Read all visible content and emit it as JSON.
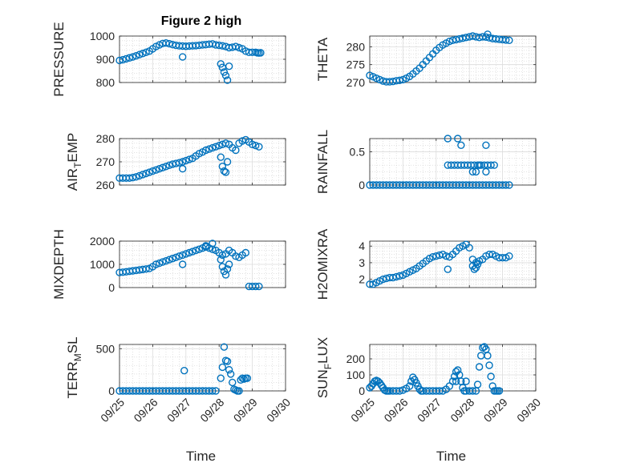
{
  "figure": {
    "title": "Figure 2 high",
    "marker_color": "#0072BD"
  },
  "chart_data": [
    {
      "type": "scatter",
      "ylabel": "PRESSURE",
      "ylabel_sub": "",
      "ylabel_tail": "",
      "xlabel": "",
      "xlim": [
        0,
        5
      ],
      "ylim": [
        800,
        1000
      ],
      "yticks": [
        800,
        900,
        1000
      ],
      "ytick_labels": [
        "800",
        "900",
        "1000"
      ],
      "xtick_labels": [
        "09/25",
        "09/26",
        "09/27",
        "09/28",
        "09/29",
        "09/30"
      ],
      "show_xtick_labels": false,
      "grid": true,
      "minor_grid": true,
      "x": [
        0.0,
        0.1,
        0.2,
        0.3,
        0.4,
        0.5,
        0.6,
        0.7,
        0.8,
        0.9,
        1.0,
        1.1,
        1.2,
        1.3,
        1.4,
        1.5,
        1.6,
        1.7,
        1.8,
        1.9,
        2.0,
        2.1,
        2.2,
        2.3,
        2.4,
        2.5,
        2.6,
        2.7,
        2.8,
        2.9,
        3.0,
        3.1,
        3.2,
        3.3,
        3.4,
        3.5,
        3.6,
        3.7,
        3.8,
        3.9,
        4.0,
        4.1,
        4.15,
        4.2,
        4.25,
        1.9,
        3.05,
        3.1,
        3.15,
        3.2,
        3.25,
        3.3
      ],
      "y": [
        895,
        898,
        902,
        906,
        910,
        915,
        920,
        925,
        930,
        935,
        945,
        955,
        962,
        968,
        970,
        967,
        963,
        960,
        958,
        957,
        956,
        957,
        958,
        959,
        960,
        962,
        963,
        965,
        966,
        962,
        960,
        958,
        955,
        950,
        952,
        955,
        950,
        945,
        935,
        930,
        930,
        930,
        928,
        927,
        928,
        910,
        880,
        865,
        845,
        830,
        810,
        870
      ]
    },
    {
      "type": "scatter",
      "ylabel": "THETA",
      "ylabel_sub": "",
      "ylabel_tail": "",
      "xlabel": "",
      "xlim": [
        0,
        5
      ],
      "ylim": [
        270,
        283
      ],
      "yticks": [
        270,
        275,
        280
      ],
      "ytick_labels": [
        "270",
        "275",
        "280"
      ],
      "xtick_labels": [
        "09/25",
        "09/26",
        "09/27",
        "09/28",
        "09/29",
        "09/30"
      ],
      "show_xtick_labels": false,
      "grid": true,
      "minor_grid": true,
      "x": [
        0.0,
        0.1,
        0.2,
        0.3,
        0.4,
        0.5,
        0.6,
        0.7,
        0.8,
        0.9,
        1.0,
        1.1,
        1.2,
        1.3,
        1.4,
        1.5,
        1.6,
        1.7,
        1.8,
        1.9,
        2.0,
        2.1,
        2.2,
        2.3,
        2.4,
        2.5,
        2.6,
        2.7,
        2.8,
        2.9,
        3.0,
        3.1,
        3.2,
        3.3,
        3.4,
        3.5,
        3.6,
        3.7,
        3.8,
        3.9,
        4.0,
        4.1,
        4.2,
        3.55
      ],
      "y": [
        272,
        271.6,
        271.2,
        270.8,
        270.4,
        270.2,
        270.2,
        270.3,
        270.5,
        270.6,
        270.8,
        271.2,
        271.7,
        272.4,
        273.2,
        274,
        275,
        276,
        277,
        278,
        279,
        279.8,
        280.5,
        281,
        281.5,
        281.8,
        282,
        282.2,
        282.4,
        282.6,
        282.8,
        283,
        282.8,
        282.6,
        282.8,
        282.7,
        282.5,
        282.3,
        282.2,
        282.1,
        282.0,
        281.9,
        281.8,
        283.5
      ]
    },
    {
      "type": "scatter",
      "ylabel": "AIR",
      "ylabel_sub": "T",
      "ylabel_tail": "EMP",
      "xlabel": "",
      "xlim": [
        0,
        5
      ],
      "ylim": [
        260,
        280
      ],
      "yticks": [
        260,
        270,
        280
      ],
      "ytick_labels": [
        "260",
        "270",
        "280"
      ],
      "xtick_labels": [
        "09/25",
        "09/26",
        "09/27",
        "09/28",
        "09/29",
        "09/30"
      ],
      "show_xtick_labels": false,
      "grid": true,
      "minor_grid": true,
      "x": [
        0.0,
        0.1,
        0.2,
        0.3,
        0.4,
        0.5,
        0.6,
        0.7,
        0.8,
        0.9,
        1.0,
        1.1,
        1.2,
        1.3,
        1.4,
        1.5,
        1.6,
        1.7,
        1.8,
        1.9,
        2.0,
        2.1,
        2.2,
        2.3,
        2.4,
        2.5,
        2.6,
        2.7,
        2.8,
        2.9,
        3.0,
        3.1,
        3.2,
        3.3,
        3.4,
        3.5,
        3.6,
        3.7,
        3.8,
        3.9,
        4.0,
        4.1,
        4.2,
        1.9,
        3.05,
        3.1,
        3.15,
        3.2,
        3.25
      ],
      "y": [
        263,
        263,
        263,
        263,
        263.2,
        263.5,
        264,
        264.5,
        265,
        265.5,
        266,
        266.5,
        267,
        267.5,
        268,
        268.5,
        269,
        269.3,
        269.6,
        270,
        270.5,
        271,
        271.5,
        272.5,
        273.5,
        274.2,
        275,
        275.5,
        276,
        276.5,
        277,
        277.5,
        278,
        277.5,
        276,
        275,
        278,
        279,
        279.5,
        278.5,
        277.5,
        277,
        276.5,
        267,
        272,
        268,
        266,
        265.5,
        270
      ]
    },
    {
      "type": "scatter",
      "ylabel": "RAINFALL",
      "ylabel_sub": "",
      "ylabel_tail": "",
      "xlabel": "",
      "xlim": [
        0,
        5
      ],
      "ylim": [
        0,
        0.7
      ],
      "yticks": [
        0,
        0.5
      ],
      "ytick_labels": [
        "0",
        "0.5"
      ],
      "xtick_labels": [
        "09/25",
        "09/26",
        "09/27",
        "09/28",
        "09/29",
        "09/30"
      ],
      "show_xtick_labels": false,
      "grid": true,
      "minor_grid": true,
      "x": [
        0.0,
        0.1,
        0.2,
        0.3,
        0.4,
        0.5,
        0.6,
        0.7,
        0.8,
        0.9,
        1.0,
        1.1,
        1.2,
        1.3,
        1.4,
        1.5,
        1.6,
        1.7,
        1.8,
        1.9,
        2.0,
        2.1,
        2.2,
        2.3,
        2.4,
        2.5,
        2.6,
        2.7,
        2.8,
        2.9,
        3.0,
        3.1,
        3.2,
        3.3,
        3.4,
        3.5,
        3.6,
        3.7,
        3.8,
        3.9,
        4.0,
        4.1,
        4.2,
        2.35,
        2.45,
        2.55,
        2.65,
        2.75,
        2.85,
        2.95,
        3.05,
        3.15,
        3.25,
        3.35,
        3.45,
        3.55,
        3.65,
        3.75,
        2.35,
        2.65,
        2.75,
        3.1,
        3.5,
        3.2,
        3.3,
        3.5
      ],
      "y": [
        0,
        0,
        0,
        0,
        0,
        0,
        0,
        0,
        0,
        0,
        0,
        0,
        0,
        0,
        0,
        0,
        0,
        0,
        0,
        0,
        0,
        0,
        0,
        0,
        0,
        0,
        0,
        0,
        0,
        0,
        0,
        0,
        0,
        0,
        0,
        0,
        0,
        0,
        0,
        0,
        0,
        0,
        0,
        0.3,
        0.3,
        0.3,
        0.3,
        0.3,
        0.3,
        0.3,
        0.3,
        0.3,
        0.3,
        0.3,
        0.3,
        0.3,
        0.3,
        0.3,
        0.7,
        0.7,
        0.6,
        0.2,
        0.6,
        0.2,
        0.3,
        0.2
      ]
    },
    {
      "type": "scatter",
      "ylabel": "MIXDEPTH",
      "ylabel_sub": "",
      "ylabel_tail": "",
      "xlabel": "",
      "xlim": [
        0,
        5
      ],
      "ylim": [
        0,
        2000
      ],
      "yticks": [
        0,
        1000,
        2000
      ],
      "ytick_labels": [
        "0",
        "1000",
        "2000"
      ],
      "xtick_labels": [
        "09/25",
        "09/26",
        "09/27",
        "09/28",
        "09/29",
        "09/30"
      ],
      "show_xtick_labels": false,
      "grid": true,
      "minor_grid": true,
      "x": [
        0.0,
        0.1,
        0.2,
        0.3,
        0.4,
        0.5,
        0.6,
        0.7,
        0.8,
        0.9,
        1.0,
        1.1,
        1.2,
        1.3,
        1.4,
        1.5,
        1.6,
        1.7,
        1.8,
        1.9,
        2.0,
        2.1,
        2.2,
        2.3,
        2.4,
        2.5,
        2.6,
        2.7,
        2.8,
        2.9,
        3.0,
        3.1,
        3.2,
        3.3,
        3.4,
        3.5,
        3.6,
        3.7,
        3.8,
        3.9,
        4.0,
        4.1,
        4.2,
        1.9,
        2.6,
        2.8,
        3.05,
        3.1,
        3.15,
        3.2,
        3.25,
        3.3
      ],
      "y": [
        650,
        660,
        680,
        700,
        720,
        740,
        760,
        780,
        800,
        820,
        900,
        1000,
        1050,
        1100,
        1150,
        1200,
        1250,
        1300,
        1350,
        1400,
        1450,
        1500,
        1550,
        1600,
        1650,
        1700,
        1750,
        1700,
        1650,
        1600,
        1500,
        1400,
        1450,
        1600,
        1500,
        1350,
        1300,
        1400,
        1500,
        50,
        50,
        50,
        50,
        1000,
        1800,
        1900,
        1200,
        900,
        700,
        550,
        800,
        1000
      ]
    },
    {
      "type": "scatter",
      "ylabel": "H2OMIXRA",
      "ylabel_sub": "",
      "ylabel_tail": "",
      "xlabel": "",
      "xlim": [
        0,
        5
      ],
      "ylim": [
        1.5,
        4.3
      ],
      "yticks": [
        2,
        3,
        4
      ],
      "ytick_labels": [
        "2",
        "3",
        "4"
      ],
      "xtick_labels": [
        "09/25",
        "09/26",
        "09/27",
        "09/28",
        "09/29",
        "09/30"
      ],
      "show_xtick_labels": false,
      "grid": true,
      "minor_grid": true,
      "x": [
        0.0,
        0.1,
        0.2,
        0.3,
        0.4,
        0.5,
        0.6,
        0.7,
        0.8,
        0.9,
        1.0,
        1.1,
        1.2,
        1.3,
        1.4,
        1.5,
        1.6,
        1.7,
        1.8,
        1.9,
        2.0,
        2.1,
        2.2,
        2.3,
        2.4,
        2.5,
        2.6,
        2.7,
        2.8,
        2.9,
        3.0,
        3.1,
        3.2,
        3.3,
        3.4,
        3.5,
        3.6,
        3.7,
        3.8,
        3.9,
        4.0,
        4.1,
        4.2,
        2.35,
        3.1,
        3.15,
        3.2,
        3.25
      ],
      "y": [
        1.7,
        1.7,
        1.8,
        1.9,
        2.0,
        2.05,
        2.1,
        2.1,
        2.15,
        2.2,
        2.25,
        2.35,
        2.45,
        2.55,
        2.65,
        2.8,
        2.95,
        3.1,
        3.25,
        3.35,
        3.4,
        3.45,
        3.5,
        3.4,
        3.35,
        3.5,
        3.7,
        3.9,
        4.0,
        4.1,
        3.9,
        3.2,
        3.0,
        3.1,
        3.2,
        3.4,
        3.5,
        3.5,
        3.4,
        3.3,
        3.3,
        3.3,
        3.4,
        2.6,
        2.8,
        2.6,
        2.7,
        2.9
      ]
    },
    {
      "type": "scatter",
      "ylabel": "TERR",
      "ylabel_sub": "M",
      "ylabel_tail": "SL",
      "xlabel": "Time",
      "xlim": [
        0,
        5
      ],
      "ylim": [
        0,
        550
      ],
      "yticks": [
        0,
        500
      ],
      "ytick_labels": [
        "0",
        "500"
      ],
      "xtick_labels": [
        "09/25",
        "09/26",
        "09/27",
        "09/28",
        "09/29",
        "09/30"
      ],
      "show_xtick_labels": true,
      "grid": true,
      "minor_grid": true,
      "x": [
        0.0,
        0.1,
        0.2,
        0.3,
        0.4,
        0.5,
        0.6,
        0.7,
        0.8,
        0.9,
        1.0,
        1.1,
        1.2,
        1.3,
        1.4,
        1.5,
        1.6,
        1.7,
        1.8,
        1.9,
        2.0,
        2.1,
        2.2,
        2.3,
        2.4,
        2.5,
        2.6,
        2.7,
        2.8,
        2.9,
        1.95,
        3.05,
        3.1,
        3.15,
        3.2,
        3.25,
        3.3,
        3.35,
        3.4,
        3.45,
        3.5,
        3.55,
        3.6,
        3.65,
        3.7,
        3.75,
        3.8,
        3.85
      ],
      "y": [
        0,
        0,
        0,
        0,
        0,
        0,
        0,
        0,
        0,
        0,
        0,
        0,
        0,
        0,
        0,
        0,
        0,
        0,
        0,
        0,
        0,
        0,
        0,
        0,
        0,
        0,
        0,
        0,
        0,
        0,
        240,
        150,
        280,
        520,
        360,
        350,
        250,
        200,
        100,
        20,
        10,
        0,
        0,
        130,
        150,
        140,
        150,
        150
      ]
    },
    {
      "type": "scatter",
      "ylabel": "SUN",
      "ylabel_sub": "F",
      "ylabel_tail": "LUX",
      "xlabel": "Time",
      "xlim": [
        0,
        5
      ],
      "ylim": [
        0,
        290
      ],
      "yticks": [
        0,
        100,
        200
      ],
      "ytick_labels": [
        "0",
        "100",
        "200"
      ],
      "xtick_labels": [
        "09/25",
        "09/26",
        "09/27",
        "09/28",
        "09/29",
        "09/30"
      ],
      "show_xtick_labels": true,
      "grid": true,
      "minor_grid": true,
      "x": [
        0.0,
        0.05,
        0.1,
        0.15,
        0.2,
        0.25,
        0.3,
        0.35,
        0.4,
        0.45,
        0.5,
        0.55,
        0.6,
        0.7,
        0.8,
        0.9,
        1.0,
        1.1,
        1.2,
        1.25,
        1.3,
        1.35,
        1.4,
        1.45,
        1.5,
        1.55,
        1.6,
        1.7,
        1.8,
        1.9,
        2.0,
        2.1,
        2.2,
        2.3,
        2.4,
        2.5,
        2.55,
        2.6,
        2.65,
        2.7,
        2.75,
        2.8,
        2.85,
        2.9,
        3.0,
        3.1,
        3.2,
        3.25,
        3.3,
        3.35,
        3.4,
        3.45,
        3.5,
        3.55,
        3.6,
        3.65,
        3.7,
        3.75,
        3.8,
        3.85,
        3.9,
        2.6,
        2.9
      ],
      "y": [
        20,
        30,
        45,
        60,
        65,
        60,
        50,
        35,
        20,
        5,
        0,
        0,
        0,
        0,
        0,
        0,
        5,
        15,
        30,
        60,
        85,
        70,
        50,
        30,
        10,
        0,
        0,
        0,
        0,
        0,
        0,
        0,
        0,
        10,
        30,
        60,
        90,
        120,
        130,
        100,
        60,
        20,
        0,
        0,
        0,
        0,
        0,
        40,
        150,
        220,
        270,
        275,
        260,
        220,
        160,
        90,
        30,
        0,
        0,
        0,
        0,
        60,
        60
      ]
    }
  ]
}
